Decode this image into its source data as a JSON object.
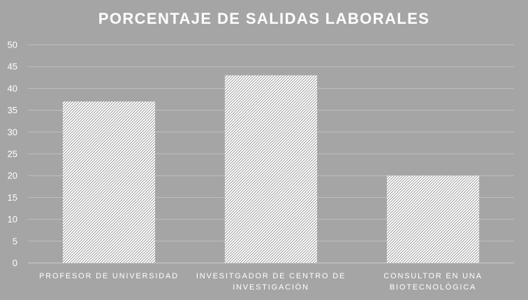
{
  "chart_data": {
    "type": "bar",
    "title": "PORCENTAJE DE SALIDAS LABORALES",
    "categories": [
      [
        "PROFESOR DE UNIVERSIDAD"
      ],
      [
        "INVESITGADOR DE CENTRO DE",
        "INVESTIGACIÓN"
      ],
      [
        "CONSULTOR EN UNA",
        "BIOTECNOLÓGICA"
      ]
    ],
    "values": [
      37,
      43,
      20
    ],
    "ylim": [
      0,
      50
    ],
    "yticks": [
      "0",
      "5",
      "10",
      "15",
      "20",
      "25",
      "30",
      "35",
      "40",
      "45",
      "50"
    ],
    "xlabel": "",
    "ylabel": "",
    "grid": true,
    "legend": "none",
    "colors": {
      "background": "#a5a5a5",
      "bar_fill": "#ffffff",
      "hatch": "#8c8c8c",
      "grid": "#bfbfbf",
      "axis": "#d0d0d0",
      "text": "#ffffff"
    }
  }
}
